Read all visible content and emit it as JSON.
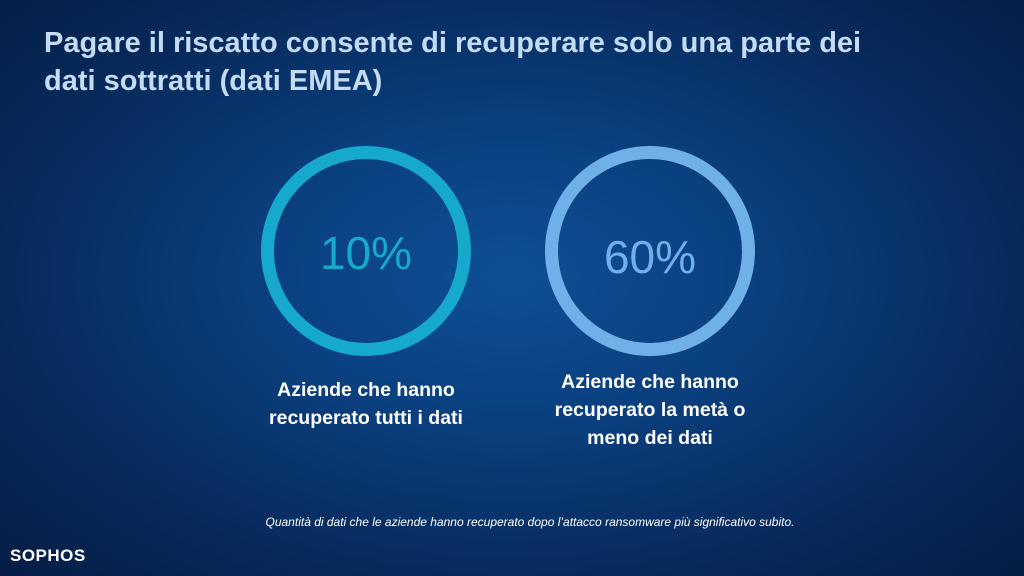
{
  "title_lines": [
    "Pagare il riscatto consente di recuperare solo una parte dei",
    "dati sottratti (dati EMEA)"
  ],
  "stats": [
    {
      "value": "10%",
      "caption_lines": [
        "Aziende che hanno",
        "recuperato tutti i dati"
      ],
      "ring_color": "#16a9cc"
    },
    {
      "value": "60%",
      "caption_lines": [
        "Aziende che hanno",
        "recuperato la metà o",
        "meno dei dati"
      ],
      "ring_color": "#6fb0e8"
    }
  ],
  "footnote": "Quantità di dati che le aziende hanno recuperato dopo l’attacco ransomware più significativo subito.",
  "logo": "SOPHOS",
  "colors": {
    "background": "#0a3f7e",
    "title": "#c5dcf4",
    "caption": "#ffffff"
  }
}
